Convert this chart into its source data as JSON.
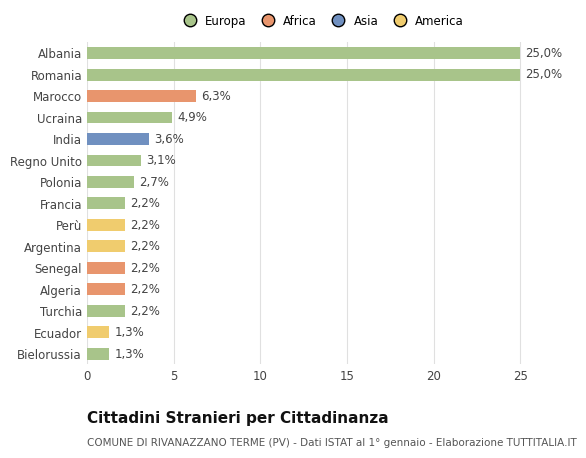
{
  "categories": [
    "Bielorussia",
    "Ecuador",
    "Turchia",
    "Algeria",
    "Senegal",
    "Argentina",
    "Perù",
    "Francia",
    "Polonia",
    "Regno Unito",
    "India",
    "Ucraina",
    "Marocco",
    "Romania",
    "Albania"
  ],
  "values": [
    1.3,
    1.3,
    2.2,
    2.2,
    2.2,
    2.2,
    2.2,
    2.2,
    2.7,
    3.1,
    3.6,
    4.9,
    6.3,
    25.0,
    25.0
  ],
  "labels": [
    "1,3%",
    "1,3%",
    "2,2%",
    "2,2%",
    "2,2%",
    "2,2%",
    "2,2%",
    "2,2%",
    "2,7%",
    "3,1%",
    "3,6%",
    "4,9%",
    "6,3%",
    "25,0%",
    "25,0%"
  ],
  "colors": [
    "#a8c48a",
    "#f0cc6e",
    "#a8c48a",
    "#e8956d",
    "#e8956d",
    "#f0cc6e",
    "#f0cc6e",
    "#a8c48a",
    "#a8c48a",
    "#a8c48a",
    "#7090c0",
    "#a8c48a",
    "#e8956d",
    "#a8c48a",
    "#a8c48a"
  ],
  "legend_labels": [
    "Europa",
    "Africa",
    "Asia",
    "America"
  ],
  "legend_colors": [
    "#a8c48a",
    "#e8956d",
    "#7090c0",
    "#f0cc6e"
  ],
  "title": "Cittadini Stranieri per Cittadinanza",
  "subtitle": "COMUNE DI RIVANAZZANO TERME (PV) - Dati ISTAT al 1° gennaio - Elaborazione TUTTITALIA.IT",
  "xlim": [
    0,
    27
  ],
  "background_color": "#ffffff",
  "grid_color": "#e0e0e0",
  "bar_height": 0.55,
  "label_fontsize": 8.5,
  "tick_fontsize": 8.5,
  "title_fontsize": 11,
  "subtitle_fontsize": 7.5
}
